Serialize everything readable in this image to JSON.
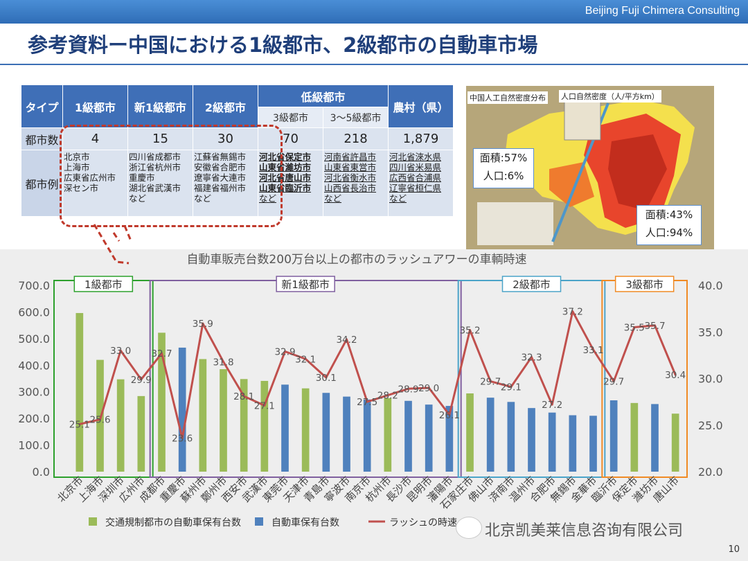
{
  "header": {
    "company": "Beijing Fuji Chimera Consulting",
    "title": "参考資料ー中国における1級都市、2級都市の自動車市場",
    "page_number": "10"
  },
  "table": {
    "type_label": "タイプ",
    "col_tier1": "1級都市",
    "col_newtier1": "新1級都市",
    "col_tier2": "2級都市",
    "col_lower": "低級都市",
    "col_rural": "農村（県）",
    "col_tier3": "3級都市",
    "col_tier35": "3～5級都市",
    "row_count_label": "都市数",
    "counts": [
      "4",
      "15",
      "30",
      "70",
      "218",
      "1,879"
    ],
    "row_examples_label": "都市例",
    "examples": [
      [
        "北京市",
        "上海市",
        "広東省広州市",
        "深セン市"
      ],
      [
        "四川省成都市",
        "浙江省杭州市",
        "重慶市",
        "湖北省武漢市",
        "など"
      ],
      [
        "江蘇省無錫市",
        "安徽省合肥市",
        "遼寧省大連市",
        "福建省福州市",
        "など"
      ],
      [
        "河北省保定市",
        "山東省濰坊市",
        "河北省唐山市",
        "山東省臨沂市",
        "など"
      ],
      [
        "河南省許昌市",
        "山東省東営市",
        "河北省衡水市",
        "山西省長治市",
        "など"
      ],
      [
        "河北省淶水県",
        "四川省米易県",
        "広西省合浦県",
        "辽寧省桓仁県",
        "など"
      ]
    ]
  },
  "map": {
    "title": "中国人工自然密度分布",
    "legend_title": "人口自然密度（人/平方km）",
    "west_area": "面積:57%",
    "west_pop": "人口:6%",
    "east_area": "面積:43%",
    "east_pop": "人口:94%"
  },
  "chart_data": {
    "type": "bar",
    "title": "自動車販売台数200万台以上の都市のラッシュアワーの車輌時速",
    "categories": [
      "北京市",
      "上海市",
      "深圳市",
      "広州市",
      "成都市",
      "重慶市",
      "蘇州市",
      "鄭州市",
      "西安市",
      "武漢市",
      "東莞市",
      "天津市",
      "青島市",
      "寧波市",
      "南京市",
      "杭州市",
      "長沙市",
      "昆明市",
      "瀋陽市",
      "石家庄市",
      "佛山市",
      "済南市",
      "温州市",
      "合肥市",
      "無錫市",
      "金華市",
      "臨沂市",
      "保定市",
      "濰坊市",
      "唐山市"
    ],
    "bar_colors": [
      "#9bbb59",
      "#9bbb59",
      "#9bbb59",
      "#9bbb59",
      "#9bbb59",
      "#4f81bd",
      "#9bbb59",
      "#9bbb59",
      "#9bbb59",
      "#9bbb59",
      "#4f81bd",
      "#9bbb59",
      "#4f81bd",
      "#4f81bd",
      "#4f81bd",
      "#9bbb59",
      "#4f81bd",
      "#4f81bd",
      "#4f81bd",
      "#9bbb59",
      "#4f81bd",
      "#4f81bd",
      "#4f81bd",
      "#4f81bd",
      "#4f81bd",
      "#4f81bd",
      "#4f81bd",
      "#9bbb59",
      "#4f81bd",
      "#9bbb59"
    ],
    "bar_values": [
      596,
      420,
      347,
      284,
      522,
      466,
      423,
      385,
      348,
      341,
      327,
      313,
      296,
      282,
      271,
      276,
      266,
      252,
      247,
      294,
      278,
      262,
      239,
      222,
      212,
      210,
      268,
      258,
      254,
      218
    ],
    "line_name": "ラッシュの時速",
    "line_values": [
      25.1,
      25.6,
      33.0,
      29.9,
      32.7,
      23.6,
      35.9,
      31.8,
      28.1,
      27.1,
      32.9,
      32.1,
      30.1,
      34.2,
      27.5,
      28.2,
      28.9,
      29.0,
      26.1,
      35.2,
      29.7,
      29.1,
      32.3,
      27.2,
      37.2,
      33.1,
      29.7,
      35.5,
      35.7,
      30.4
    ],
    "line_labels": [
      "25.1",
      "25.6",
      "33.0",
      "29.9",
      "32.7",
      "23.6",
      "35.9",
      "31.8",
      "28.1",
      "27.1",
      "32.9",
      "32.1",
      "30.1",
      "34.2",
      "27.5",
      "28.2",
      "28.9",
      "29.0",
      "26.1",
      "35.2",
      "29.7",
      "29.1",
      "32.3",
      "27.2",
      "37.2",
      "33.1",
      "29.7",
      "35.5",
      "35.7",
      "30.4"
    ],
    "ylim": [
      0,
      700
    ],
    "y_ticks": [
      "0.0",
      "100.0",
      "200.0",
      "300.0",
      "400.0",
      "500.0",
      "600.0",
      "700.0"
    ],
    "y2lim": [
      20,
      40
    ],
    "y2_ticks": [
      "20.0",
      "25.0",
      "30.0",
      "35.0",
      "40.0"
    ],
    "groups": [
      {
        "label": "1級都市",
        "start": 0,
        "end": 3,
        "color": "#2ca02c"
      },
      {
        "label": "新1級都市",
        "start": 4,
        "end": 18,
        "color": "#7f5f9f"
      },
      {
        "label": "2級都市",
        "start": 19,
        "end": 25,
        "color": "#4aa3c8"
      },
      {
        "label": "3級都市",
        "start": 26,
        "end": 29,
        "color": "#f08a24"
      }
    ],
    "legend": [
      {
        "label": "交通規制都市の自動車保有台数",
        "color": "#9bbb59",
        "kind": "bar"
      },
      {
        "label": "自動車保有台数",
        "color": "#4f81bd",
        "kind": "bar"
      },
      {
        "label": "ラッシュの時速",
        "color": "#c0504d",
        "kind": "line"
      }
    ]
  },
  "watermark": "北京凯美莱信息咨询有限公司"
}
